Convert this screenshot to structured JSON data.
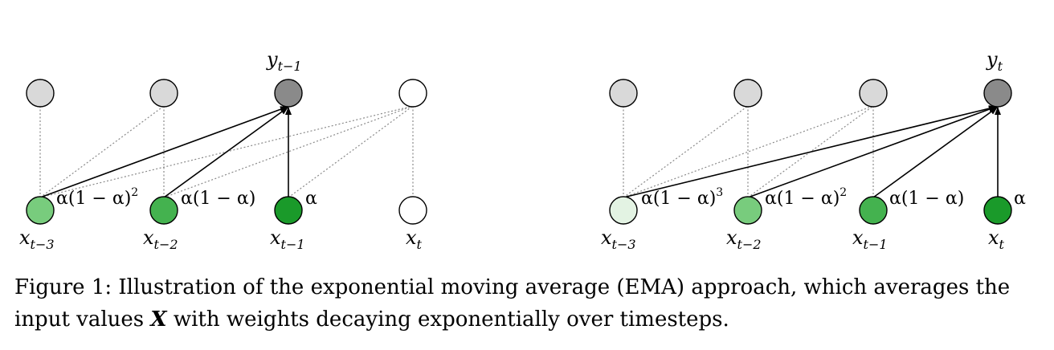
{
  "colors": {
    "gray_node": "#d9d9d9",
    "output_node": "#8a8a8a",
    "white_node": "#ffffff",
    "green_1": "#1a9a2a",
    "green_2": "#44b24f",
    "green_3": "#78cc7d",
    "green_4": "#e3f3e3",
    "dotted_edge": "#8a8a8a",
    "arrow": "#000000"
  },
  "panel_left": {
    "output_label": "y",
    "output_sub": "t−1",
    "inputs": [
      {
        "label": "x",
        "sub": "t−3",
        "weight": "α(1 − α)",
        "weight_sup": "2"
      },
      {
        "label": "x",
        "sub": "t−2",
        "weight": "α(1 − α)",
        "weight_sup": ""
      },
      {
        "label": "x",
        "sub": "t−1",
        "weight": "α",
        "weight_sup": ""
      },
      {
        "label": "x",
        "sub": "t",
        "weight": "",
        "weight_sup": ""
      }
    ]
  },
  "panel_right": {
    "output_label": "y",
    "output_sub": "t",
    "inputs": [
      {
        "label": "x",
        "sub": "t−3",
        "weight": "α(1 − α)",
        "weight_sup": "3"
      },
      {
        "label": "x",
        "sub": "t−2",
        "weight": "α(1 − α)",
        "weight_sup": "2"
      },
      {
        "label": "x",
        "sub": "t−1",
        "weight": "α(1 − α)",
        "weight_sup": ""
      },
      {
        "label": "x",
        "sub": "t",
        "weight": "α",
        "weight_sup": ""
      }
    ]
  },
  "caption": {
    "prefix": "Figure 1: Illustration of the exponential moving average (EMA) approach, which averages the input values ",
    "symbol": "X",
    "suffix": " with weights decaying exponentially over timesteps."
  }
}
